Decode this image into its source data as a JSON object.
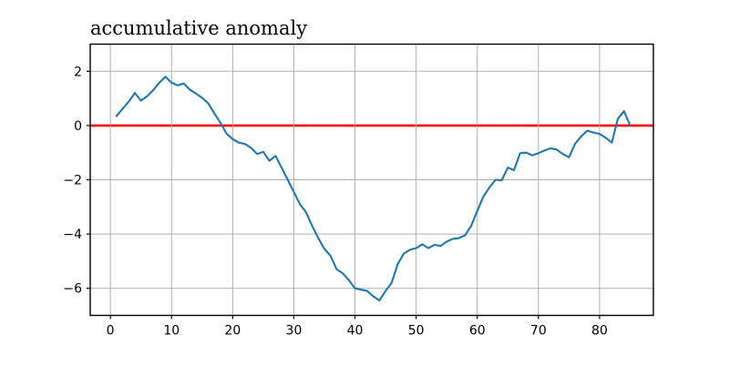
{
  "chart_data": {
    "type": "line",
    "title": "accumulative anomaly",
    "xlabel": "",
    "ylabel": "",
    "grid": true,
    "legend": null,
    "xlim": [
      -3.3,
      88.8
    ],
    "ylim": [
      -7,
      3
    ],
    "xticks": [
      0,
      10,
      20,
      30,
      40,
      50,
      60,
      70,
      80
    ],
    "yticks": [
      2,
      0,
      -2,
      -4,
      -6
    ],
    "colors": {
      "series": "#1f77b4",
      "zero_line": "#ff0000",
      "grid": "#b0b0b0",
      "axis": "#000000",
      "background": "#ffffff"
    },
    "zero_line": {
      "y": 0
    },
    "x": [
      1,
      2,
      3,
      4,
      5,
      6,
      7,
      8,
      9,
      10,
      11,
      12,
      13,
      14,
      15,
      16,
      17,
      18,
      19,
      20,
      21,
      22,
      23,
      24,
      25,
      26,
      27,
      28,
      29,
      30,
      31,
      32,
      33,
      34,
      35,
      36,
      37,
      38,
      39,
      40,
      41,
      42,
      43,
      44,
      45,
      46,
      47,
      48,
      49,
      50,
      51,
      52,
      53,
      54,
      55,
      56,
      57,
      58,
      59,
      60,
      61,
      62,
      63,
      64,
      65,
      66,
      67,
      68,
      69,
      70,
      71,
      72,
      73,
      74,
      75,
      76,
      77,
      78,
      79,
      80,
      81,
      82,
      83,
      84,
      85
    ],
    "series": [
      {
        "name": "accumulative anomaly",
        "values": [
          0.35,
          0.62,
          0.88,
          1.2,
          0.92,
          1.08,
          1.3,
          1.58,
          1.8,
          1.58,
          1.48,
          1.55,
          1.32,
          1.18,
          1.02,
          0.82,
          0.45,
          0.1,
          -0.3,
          -0.5,
          -0.63,
          -0.68,
          -0.82,
          -1.05,
          -0.97,
          -1.3,
          -1.12,
          -1.55,
          -2.0,
          -2.45,
          -2.9,
          -3.2,
          -3.7,
          -4.15,
          -4.55,
          -4.8,
          -5.3,
          -5.45,
          -5.7,
          -6.0,
          -6.05,
          -6.1,
          -6.3,
          -6.45,
          -6.1,
          -5.8,
          -5.1,
          -4.72,
          -4.58,
          -4.52,
          -4.38,
          -4.52,
          -4.4,
          -4.44,
          -4.28,
          -4.18,
          -4.15,
          -4.05,
          -3.7,
          -3.15,
          -2.62,
          -2.28,
          -2.0,
          -2.02,
          -1.55,
          -1.65,
          -1.02,
          -1.0,
          -1.1,
          -1.02,
          -0.92,
          -0.84,
          -0.89,
          -1.05,
          -1.17,
          -0.67,
          -0.4,
          -0.19,
          -0.26,
          -0.31,
          -0.45,
          -0.63,
          0.25,
          0.53,
          0.0
        ]
      }
    ]
  }
}
